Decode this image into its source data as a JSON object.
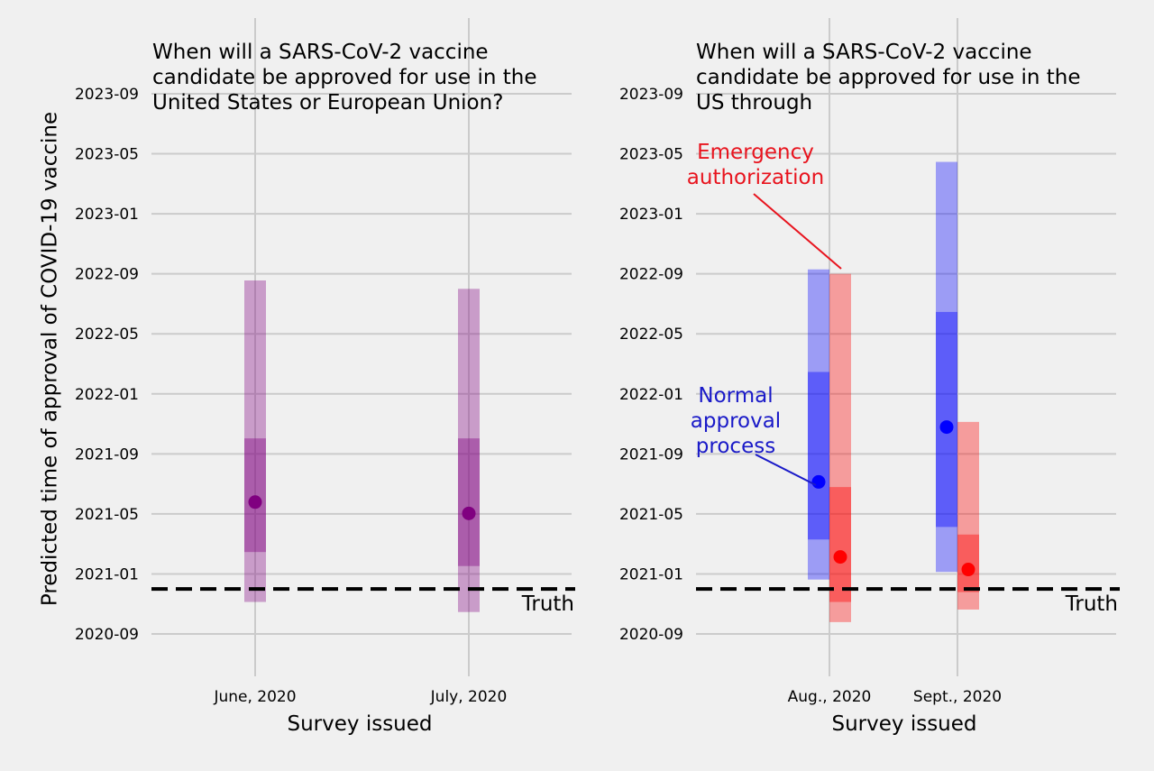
{
  "ylabel": "Predicted time of approval of COVID-19 vaccine",
  "colors": {
    "background": "#f0f0f0",
    "grid": "#cbcbcb",
    "purple": "#800080",
    "blue": "#0000ff",
    "red": "#ff0000",
    "annot_red": "#e8141e",
    "annot_blue": "#1a1ac8"
  },
  "chart_data": [
    {
      "type": "interval",
      "title_lines": [
        "When will a SARS-CoV-2 vaccine",
        "candidate be approved for use in the",
        "United States or European Union?"
      ],
      "xlabel": "Survey issued",
      "categories": [
        "June, 2020",
        "July, 2020"
      ],
      "y_ticks": [
        "2020-09",
        "2021-01",
        "2021-05",
        "2021-09",
        "2022-01",
        "2022-05",
        "2022-09",
        "2023-01",
        "2023-05",
        "2023-09"
      ],
      "truth": {
        "label": "Truth",
        "value": "2020-12"
      },
      "series": [
        {
          "color": "purple",
          "values": [
            {
              "category": "June, 2020",
              "median": "2021-05-25",
              "inner": [
                "2021-02-15",
                "2021-10-02"
              ],
              "outer": [
                "2020-11-05",
                "2022-08-18"
              ]
            },
            {
              "category": "July, 2020",
              "median": "2021-05-02",
              "inner": [
                "2021-01-17",
                "2021-10-02"
              ],
              "outer": [
                "2020-10-15",
                "2022-08-01"
              ]
            }
          ]
        }
      ]
    },
    {
      "type": "interval",
      "title_lines": [
        "When will a SARS-CoV-2 vaccine",
        "candidate be approved for use in the",
        "US through"
      ],
      "xlabel": "Survey issued",
      "categories": [
        "Aug., 2020",
        "Sept., 2020"
      ],
      "y_ticks": [
        "2020-09",
        "2021-01",
        "2021-05",
        "2021-09",
        "2022-01",
        "2022-05",
        "2022-09",
        "2023-01",
        "2023-05",
        "2023-09"
      ],
      "truth": {
        "label": "Truth",
        "value": "2020-12"
      },
      "series": [
        {
          "name": "Normal approval process",
          "color": "blue",
          "values": [
            {
              "category": "Aug., 2020",
              "median": "2021-07-05",
              "inner": [
                "2021-03-10",
                "2022-02-15"
              ],
              "outer": [
                "2020-12-20",
                "2022-09-10"
              ]
            },
            {
              "category": "Sept., 2020",
              "median": "2021-10-25",
              "inner": [
                "2021-04-05",
                "2022-06-15"
              ],
              "outer": [
                "2021-01-05",
                "2023-04-15"
              ]
            }
          ]
        },
        {
          "name": "Emergency authorization",
          "color": "red",
          "values": [
            {
              "category": "Aug., 2020",
              "median": "2021-02-05",
              "inner": [
                "2020-11-05",
                "2021-06-25"
              ],
              "outer": [
                "2020-09-25",
                "2022-09-01"
              ]
            },
            {
              "category": "Sept., 2020",
              "median": "2021-01-10",
              "inner": [
                "2020-11-25",
                "2021-03-20"
              ],
              "outer": [
                "2020-10-20",
                "2021-11-05"
              ]
            }
          ]
        }
      ],
      "annotations": [
        {
          "lines": [
            "Emergency",
            "authorization"
          ],
          "color": "annot_red"
        },
        {
          "lines": [
            "Normal",
            "approval",
            "process"
          ],
          "color": "annot_blue"
        }
      ]
    }
  ]
}
